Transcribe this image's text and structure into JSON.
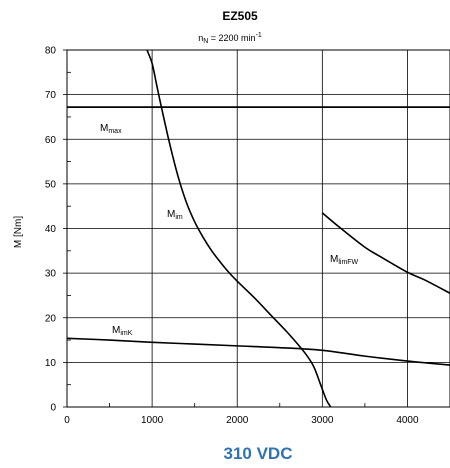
{
  "chart_data": {
    "type": "line",
    "title": "EZ505",
    "subtitle": {
      "base": "n",
      "sub": "N",
      "rest": " = 2200 min",
      "sup": "-1"
    },
    "xlabel": "",
    "ylabel": "M [Nm]",
    "footer": "310 VDC",
    "xlim": [
      0,
      4500
    ],
    "ylim": [
      0,
      80
    ],
    "x_ticks": [
      0,
      1000,
      2000,
      3000,
      4000
    ],
    "y_ticks": [
      0,
      10,
      20,
      30,
      40,
      50,
      60,
      70,
      80
    ],
    "grid": true,
    "legend": "none",
    "series": [
      {
        "label": {
          "base": "M",
          "sub": "max"
        },
        "points": [
          [
            0,
            67.2
          ],
          [
            4500,
            67.2
          ]
        ]
      },
      {
        "label": {
          "base": "M",
          "sub": "im"
        },
        "points": [
          [
            940,
            80
          ],
          [
            1000,
            77
          ],
          [
            1050,
            72.5
          ],
          [
            1100,
            68
          ],
          [
            1200,
            59.5
          ],
          [
            1300,
            52
          ],
          [
            1400,
            46
          ],
          [
            1500,
            41.5
          ],
          [
            1600,
            38
          ],
          [
            1700,
            35
          ],
          [
            1800,
            32.5
          ],
          [
            1900,
            30.2
          ],
          [
            2000,
            28.2
          ],
          [
            2200,
            24.5
          ],
          [
            2400,
            20.5
          ],
          [
            2600,
            16.5
          ],
          [
            2800,
            12
          ],
          [
            2900,
            9
          ],
          [
            2980,
            5
          ],
          [
            3050,
            1.5
          ],
          [
            3100,
            0
          ]
        ]
      },
      {
        "label": {
          "base": "M",
          "sub": "imK"
        },
        "points": [
          [
            0,
            15.4
          ],
          [
            500,
            15
          ],
          [
            1000,
            14.5
          ],
          [
            1500,
            14.1
          ],
          [
            2000,
            13.7
          ],
          [
            2500,
            13.3
          ],
          [
            3000,
            12.7
          ],
          [
            3500,
            11.4
          ],
          [
            4000,
            10.3
          ],
          [
            4500,
            9.4
          ]
        ]
      },
      {
        "label": {
          "base": "M",
          "sub": "limFW"
        },
        "points": [
          [
            3000,
            43.5
          ],
          [
            3200,
            40.3
          ],
          [
            3500,
            35.8
          ],
          [
            3700,
            33.5
          ],
          [
            4000,
            30.2
          ],
          [
            4200,
            28.5
          ],
          [
            4500,
            25.5
          ]
        ]
      }
    ]
  },
  "style": {
    "grid_color": "#000000",
    "line_color": "#000000",
    "footer_color": "#2e74b5"
  }
}
